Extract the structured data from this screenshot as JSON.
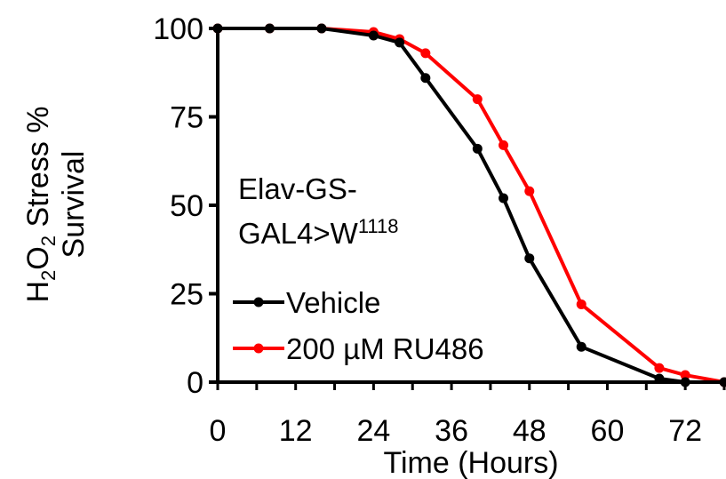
{
  "chart_data": {
    "type": "line",
    "xlabel": "Time (Hours)",
    "ylabel_line1_parts": [
      "H",
      "2",
      "O",
      "2",
      " Stress %"
    ],
    "ylabel_line2": "Survival",
    "x_ticks": [
      "0",
      "12",
      "24",
      "36",
      "48",
      "60",
      "72"
    ],
    "y_ticks": [
      "0",
      "25",
      "50",
      "75",
      "100"
    ],
    "xlim": [
      0,
      78
    ],
    "ylim": [
      0,
      100
    ],
    "annotation": {
      "line1": "Elav-GS-",
      "line2_main": "GAL4>W",
      "line2_sup": "1118"
    },
    "series": [
      {
        "name": "Vehicle",
        "color": "#000000",
        "x": [
          0,
          8,
          16,
          24,
          28,
          32,
          40,
          44,
          48,
          56,
          68,
          72,
          78
        ],
        "y": [
          100,
          100,
          100,
          98,
          96,
          86,
          66,
          52,
          35,
          10,
          1,
          0,
          0
        ]
      },
      {
        "name": "200 µM RU486",
        "color": "#ff0000",
        "x": [
          0,
          8,
          16,
          24,
          28,
          32,
          40,
          44,
          48,
          56,
          68,
          72,
          78
        ],
        "y": [
          100,
          100,
          100,
          99,
          97,
          93,
          80,
          67,
          54,
          22,
          4,
          2,
          0
        ]
      }
    ]
  }
}
